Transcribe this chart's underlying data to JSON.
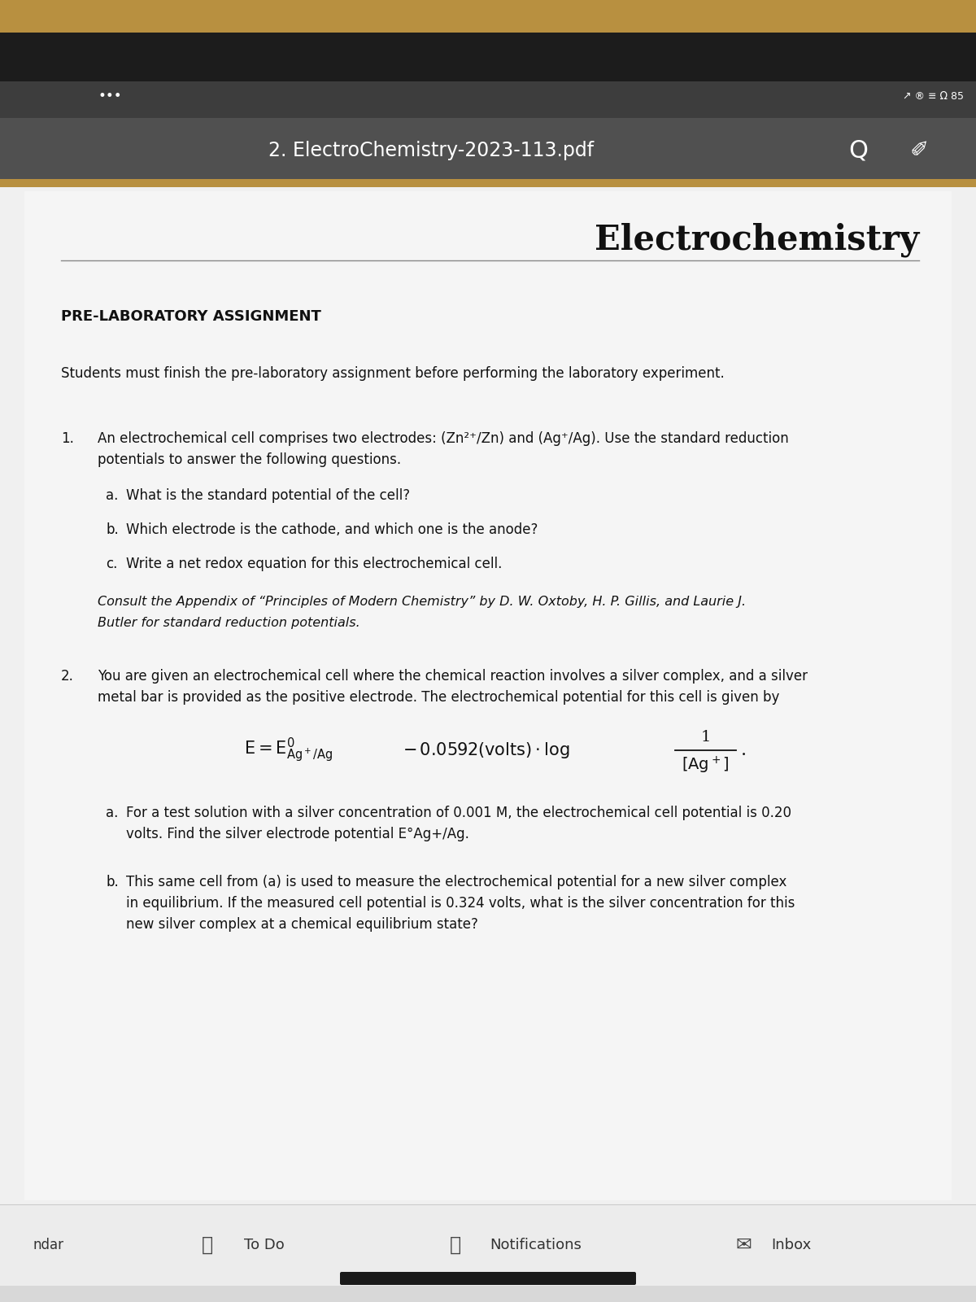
{
  "bg_very_top_color": "#b89040",
  "dark_top_color": "#1a1a1a",
  "nav_bar_color": "#555555",
  "paper_color": "#f2f2f2",
  "bottom_bar_color": "#e8e8e8",
  "title_bar_text": "2. ElectroChemistry-2023-113.pdf",
  "doc_title": "Electrochemistry",
  "prelabs_heading": "PRE-LABORATORY ASSIGNMENT",
  "intro_text": "Students must finish the pre-laboratory assignment before performing the laboratory experiment.",
  "q1_line1": "An electrochemical cell comprises two electrodes: (Zn²⁺/Zn) and (Ag⁺/Ag). Use the standard reduction",
  "q1_line2": "potentials to answer the following questions.",
  "q1a": "What is the standard potential of the cell?",
  "q1b": "Which electrode is the cathode, and which one is the anode?",
  "q1c": "Write a net redox equation for this electrochemical cell.",
  "q1_italic_line1": "Consult the Appendix of “Principles of Modern Chemistry” by D. W. Oxtoby, H. P. Gillis, and Laurie J.",
  "q1_italic_line2": "Butler for standard reduction potentials.",
  "q2_line1": "You are given an electrochemical cell where the chemical reaction involves a silver complex, and a silver",
  "q2_line2": "metal bar is provided as the positive electrode. The electrochemical potential for this cell is given by",
  "q2a_line1": "For a test solution with a silver concentration of 0.001 M, the electrochemical cell potential is 0.20",
  "q2a_line2": "volts. Find the silver electrode potential E°Ag+/Ag.",
  "q2b_line1": "This same cell from (a) is used to measure the electrochemical potential for a new silver complex",
  "q2b_line2": "in equilibrium. If the measured cell potential is 0.324 volts, what is the silver concentration for this",
  "q2b_line3": "new silver complex at a chemical equilibrium state?",
  "bottom_ndar": "ndar",
  "bottom_todo": "To Do",
  "bottom_notif": "Notifications",
  "bottom_inbox": "Inbox"
}
